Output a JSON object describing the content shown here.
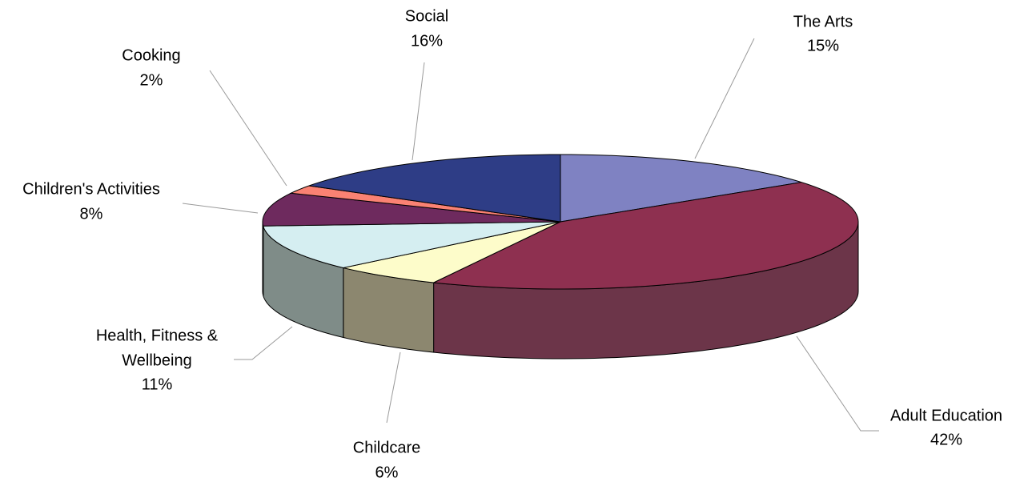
{
  "chart_data": {
    "type": "pie",
    "style": "3d",
    "start_angle_deg": 90,
    "direction": "clockwise",
    "legend": "none",
    "slices": [
      {
        "label": "The Arts",
        "value": 15,
        "label_text": "15%",
        "color": "#7f82c2"
      },
      {
        "label": "Adult Education",
        "value": 42,
        "label_text": "42%",
        "color": "#8e3050"
      },
      {
        "label": "Childcare",
        "value": 6,
        "label_text": "6%",
        "color": "#fdfcca"
      },
      {
        "label": "Health, Fitness & Wellbeing",
        "value": 11,
        "label_text": "11%",
        "color": "#d5eef1"
      },
      {
        "label": "Children's Activities",
        "value": 8,
        "label_text": "8%",
        "color": "#6e2a5e"
      },
      {
        "label": "Cooking",
        "value": 2,
        "label_text": "2%",
        "color": "#fa8273"
      },
      {
        "label": "Social",
        "value": 16,
        "label_text": "16%",
        "color": "#2e3d86"
      }
    ],
    "side_colors": {
      "Adult Education": "#6c3549",
      "Childcare": "#8c876f",
      "Health, Fitness & Wellbeing": "#7f8c88"
    }
  }
}
